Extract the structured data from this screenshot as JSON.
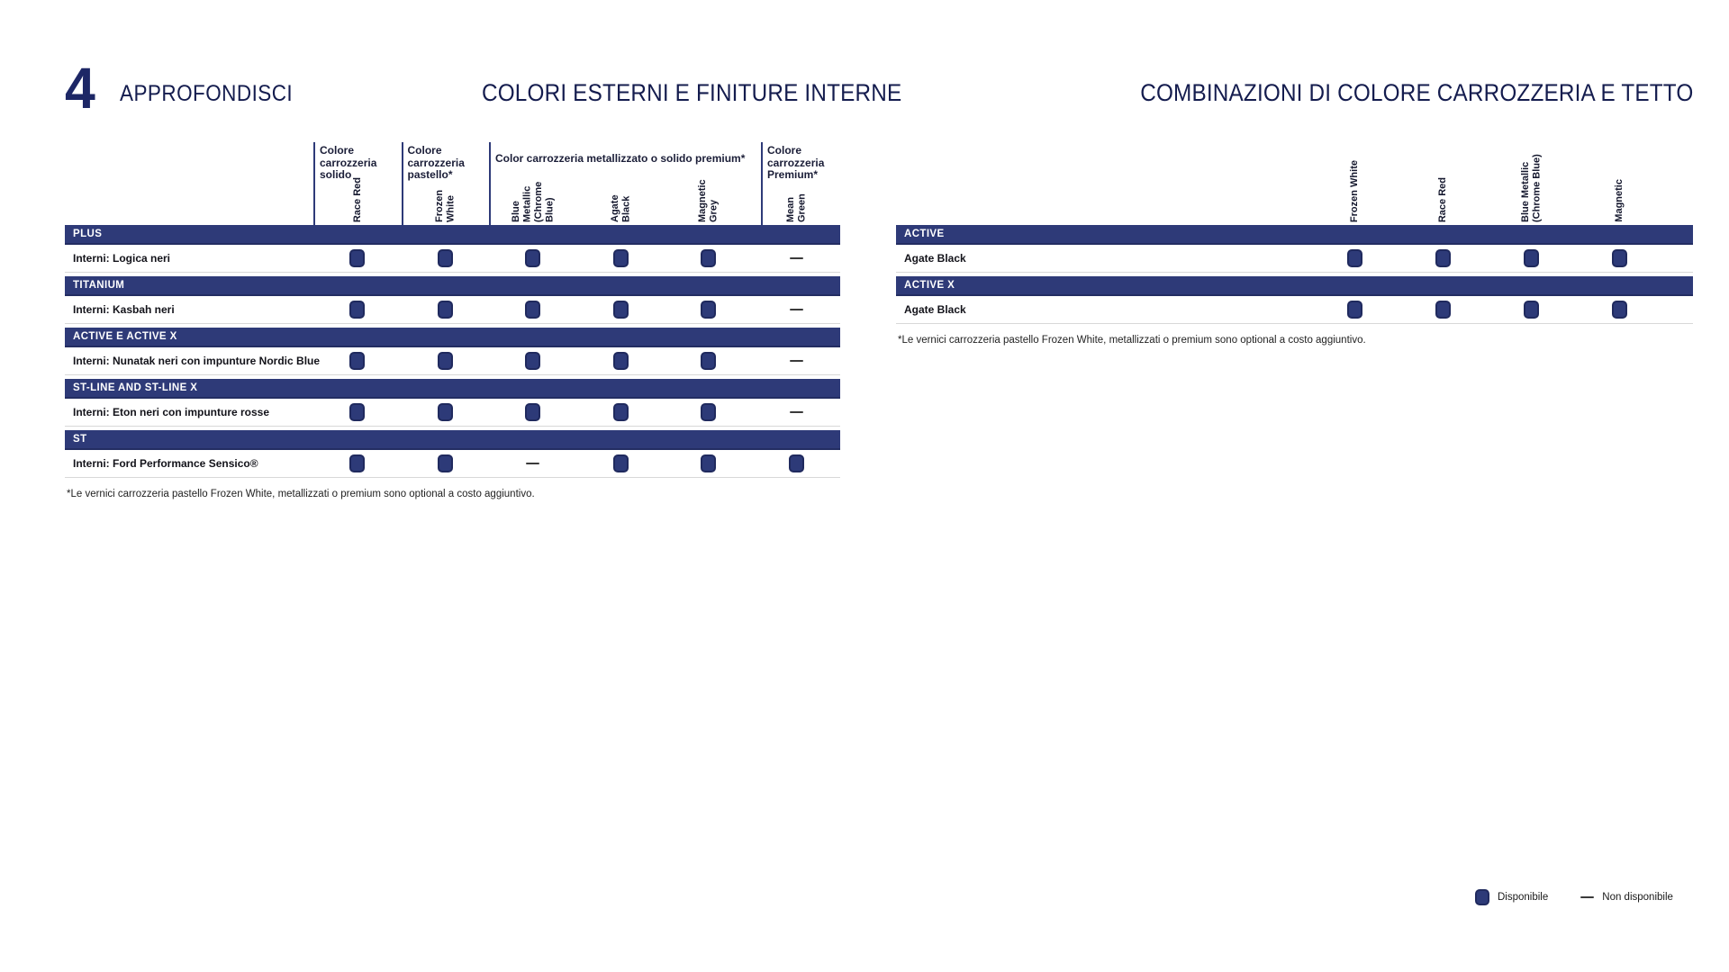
{
  "page": {
    "section_number": "4",
    "section_label": "APPROFONDISCI",
    "left_title": "COLORI ESTERNI E FINITURE INTERNE",
    "right_title": "COMBINAZIONI DI COLORE CARROZZERIA E TETTO"
  },
  "colors": {
    "navy": "#2e3a78",
    "navy_dark": "#202a5e",
    "title_navy": "#141c4e",
    "dash": "#3a3a3a",
    "row_line": "#d8d8d8"
  },
  "left_table": {
    "column_groups": [
      {
        "label": "Colore carrozzeria solido",
        "span": 1
      },
      {
        "label": "Colore carrozzeria pastello*",
        "span": 1
      },
      {
        "label": "Color carrozzeria metallizzato o solido premium*",
        "span": 3
      },
      {
        "label": "Colore carrozzeria Premium*",
        "span": 1
      }
    ],
    "columns": [
      "Race Red",
      "Frozen White",
      "Blue Metallic (Chrome Blue)",
      "Agate Black",
      "Magnetic Grey",
      "Mean Green"
    ],
    "sections": [
      {
        "name": "PLUS",
        "row_label": "Interni: Logica neri",
        "availability": [
          true,
          true,
          true,
          true,
          true,
          false
        ]
      },
      {
        "name": "TITANIUM",
        "row_label": "Interni: Kasbah neri",
        "availability": [
          true,
          true,
          true,
          true,
          true,
          false
        ]
      },
      {
        "name": "ACTIVE E ACTIVE X",
        "row_label": "Interni: Nunatak neri con impunture Nordic Blue",
        "availability": [
          true,
          true,
          true,
          true,
          true,
          false
        ]
      },
      {
        "name": "ST-LINE AND ST-LINE X",
        "row_label": "Interni: Eton neri con impunture rosse",
        "availability": [
          true,
          true,
          true,
          true,
          true,
          false
        ]
      },
      {
        "name": "ST",
        "row_label": "Interni: Ford Performance Sensico®",
        "availability": [
          true,
          true,
          false,
          true,
          true,
          true
        ]
      }
    ],
    "footnote": "*Le vernici carrozzeria pastello Frozen White, metallizzati o premium sono optional a costo aggiuntivo."
  },
  "right_table": {
    "columns": [
      "Frozen White",
      "Race Red",
      "Blue Metallic (Chrome Blue)",
      "Magnetic"
    ],
    "sections": [
      {
        "name": "ACTIVE",
        "row_label": "Agate Black",
        "availability": [
          true,
          true,
          true,
          true
        ]
      },
      {
        "name": "ACTIVE X",
        "row_label": "Agate Black",
        "availability": [
          true,
          true,
          true,
          true
        ]
      }
    ],
    "footnote": "*Le vernici carrozzeria pastello Frozen White, metallizzati o premium sono optional a costo aggiuntivo."
  },
  "legend": {
    "available": "Disponibile",
    "not_available": "Non disponibile"
  }
}
